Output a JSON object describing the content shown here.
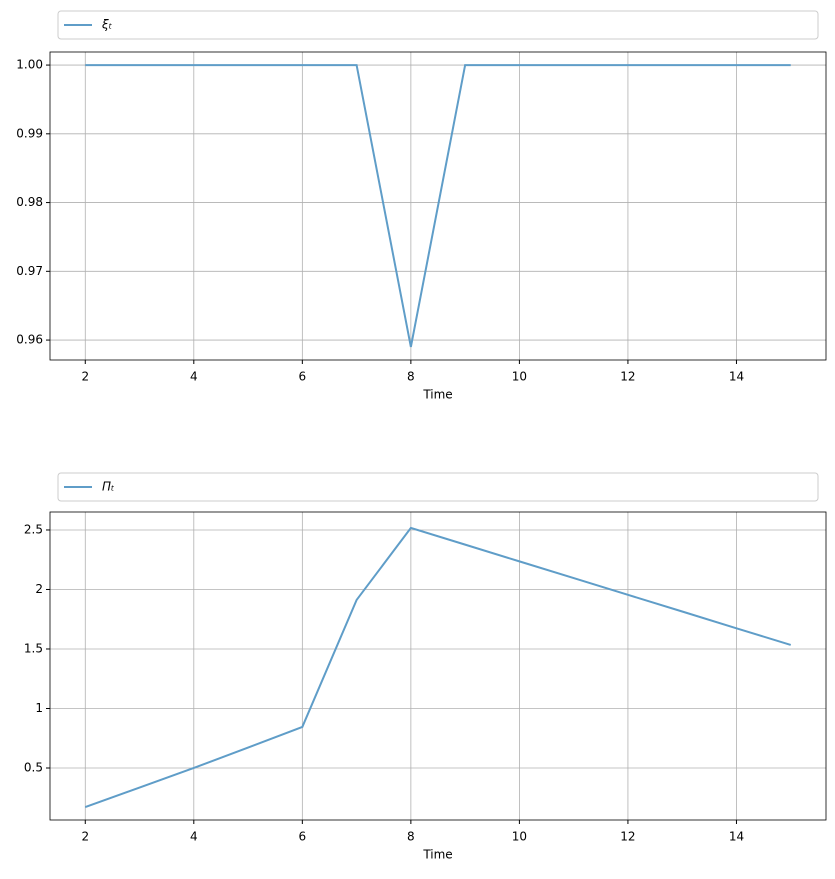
{
  "chart_data": [
    {
      "type": "line",
      "x_label": "Time",
      "series": [
        {
          "name": "ξₜ",
          "color": "#5f9dc8",
          "x": [
            2,
            3,
            4,
            5,
            6,
            7,
            8,
            9,
            10,
            11,
            12,
            13,
            14,
            15
          ],
          "values": [
            1.0,
            1.0,
            1.0,
            1.0,
            1.0,
            1.0,
            0.959,
            1.0,
            1.0,
            1.0,
            1.0,
            1.0,
            1.0,
            1.0
          ]
        }
      ],
      "xlim": [
        1.35,
        15.65
      ],
      "xticks": [
        2,
        4,
        6,
        8,
        10,
        12,
        14
      ],
      "ylim": [
        0.9571,
        1.0019
      ],
      "yticks": [
        {
          "value": 0.96,
          "label": "0.96"
        },
        {
          "value": 0.97,
          "label": "0.97"
        },
        {
          "value": 0.98,
          "label": "0.98"
        },
        {
          "value": 0.99,
          "label": "0.99"
        },
        {
          "value": 1.0,
          "label": "1.00"
        }
      ],
      "grid": true
    },
    {
      "type": "line",
      "x_label": "Time",
      "series": [
        {
          "name": "Πₜ",
          "color": "#5f9dc8",
          "x": [
            2,
            3,
            4,
            5,
            6,
            7,
            8,
            9,
            10,
            11,
            12,
            13,
            14,
            15
          ],
          "values": [
            0.172,
            0.336,
            0.5,
            0.672,
            0.845,
            1.912,
            2.517,
            2.377,
            2.236,
            2.096,
            1.955,
            1.815,
            1.674,
            1.534
          ]
        }
      ],
      "xlim": [
        1.35,
        15.65
      ],
      "xticks": [
        2,
        4,
        6,
        8,
        10,
        12,
        14
      ],
      "ylim": [
        0.063,
        2.651
      ],
      "yticks": [
        0.5,
        1.0,
        1.5,
        2.0,
        2.5
      ],
      "grid": true
    }
  ]
}
